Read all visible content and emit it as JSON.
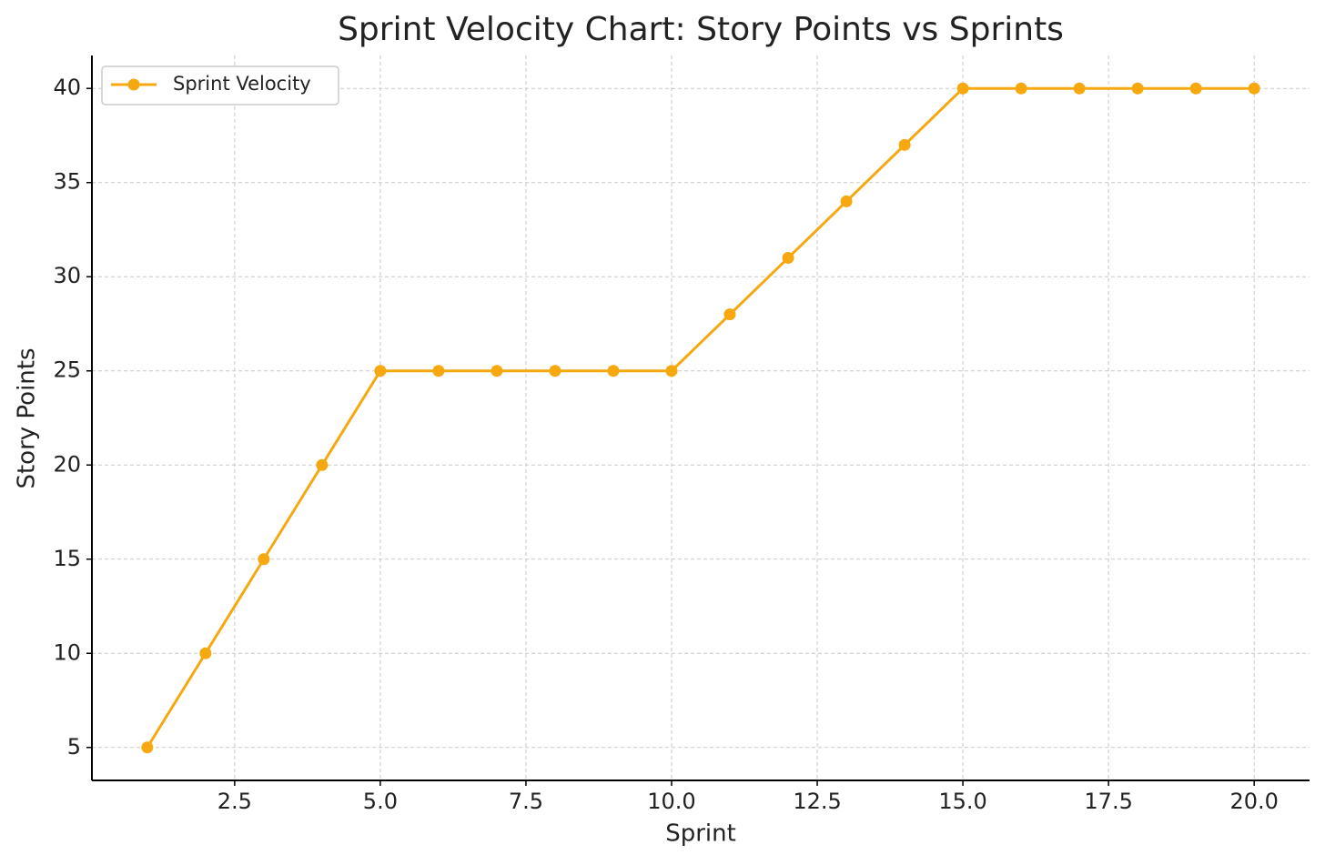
{
  "chart_data": {
    "type": "line",
    "title": "Sprint Velocity Chart: Story Points vs Sprints",
    "x_label": "Sprint",
    "y_label": "Story Points",
    "x": [
      1,
      2,
      3,
      4,
      5,
      6,
      7,
      8,
      9,
      10,
      11,
      12,
      13,
      14,
      15,
      16,
      17,
      18,
      19,
      20
    ],
    "series": [
      {
        "name": "Sprint Velocity",
        "color": "#f5a80f",
        "values": [
          5,
          10,
          15,
          20,
          25,
          25,
          25,
          25,
          25,
          25,
          28,
          31,
          34,
          37,
          40,
          40,
          40,
          40,
          40,
          40
        ]
      }
    ],
    "xlim": [
      0.05,
      20.95
    ],
    "xticks": [
      2.5,
      {
        "value": 5,
        "label": "5.0"
      },
      7.5,
      {
        "value": 10,
        "label": "10.0"
      },
      12.5,
      {
        "value": 15,
        "label": "15.0"
      },
      17.5,
      {
        "value": 20,
        "label": "20.0"
      }
    ],
    "ylim": [
      3.25,
      41.75
    ],
    "yticks": [
      5,
      10,
      15,
      20,
      25,
      30,
      35,
      40
    ],
    "grid": true,
    "legend": "upper left"
  }
}
